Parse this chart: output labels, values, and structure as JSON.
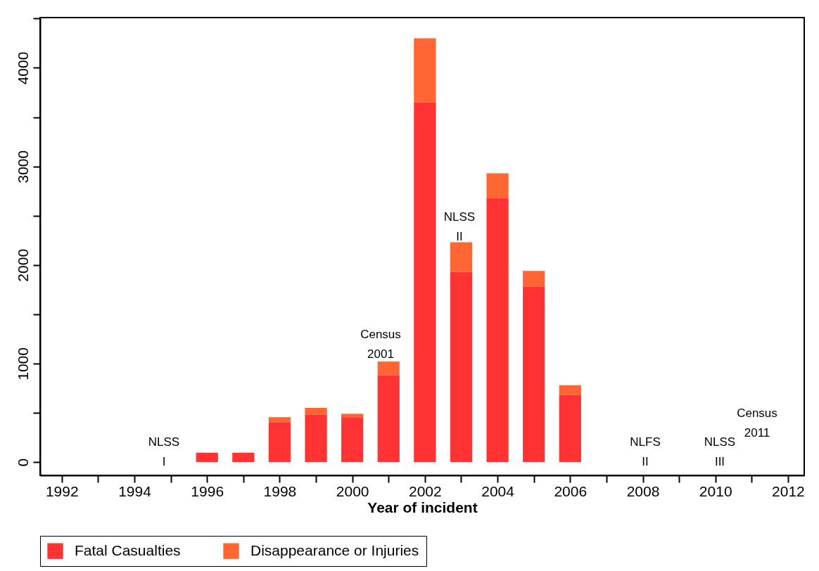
{
  "chart_data": {
    "type": "bar",
    "xlabel": "Year of incident",
    "stacked": true,
    "x": [
      1996,
      1997,
      1998,
      1999,
      2000,
      2001,
      2002,
      2003,
      2004,
      2005,
      2006
    ],
    "series": [
      {
        "name": "Fatal Casualties",
        "color": "#ff3333",
        "values": [
          95,
          95,
          405,
          480,
          450,
          880,
          3650,
          1930,
          2680,
          1780,
          680
        ]
      },
      {
        "name": "Disappearance or Injuries",
        "color": "#ff6633",
        "values": [
          0,
          0,
          50,
          70,
          40,
          140,
          650,
          300,
          250,
          160,
          100
        ]
      }
    ],
    "xlim": [
      1991.5,
      2012.35
    ],
    "xticks": [
      1992,
      {
        "value": 1993,
        "label": null
      },
      1994,
      {
        "value": 1995,
        "label": null
      },
      1996,
      {
        "value": 1997,
        "label": null
      },
      1998,
      {
        "value": 1999,
        "label": null
      },
      2000,
      {
        "value": 2001,
        "label": null
      },
      2002,
      {
        "value": 2003,
        "label": null
      },
      2004,
      {
        "value": 2005,
        "label": null
      },
      2006,
      {
        "value": 2007,
        "label": null
      },
      2008,
      {
        "value": 2009,
        "label": null
      },
      2010,
      {
        "value": 2011,
        "label": null
      },
      2012
    ],
    "ylim": [
      -135,
      4510
    ],
    "yticks": [
      0,
      {
        "value": 500,
        "label": null
      },
      1000,
      {
        "value": 1500,
        "label": null
      },
      2000,
      {
        "value": 2500,
        "label": null
      },
      3000,
      {
        "value": 3500,
        "label": null
      },
      4000,
      {
        "value": 4500,
        "label": null
      }
    ],
    "annotations": [
      "NLSS\nI",
      "Census\n2001",
      "NLSS\nII",
      "NLFS\nII",
      "NLSS\nIII",
      "Census\n2011"
    ],
    "legend": "bottom",
    "grid": false
  }
}
